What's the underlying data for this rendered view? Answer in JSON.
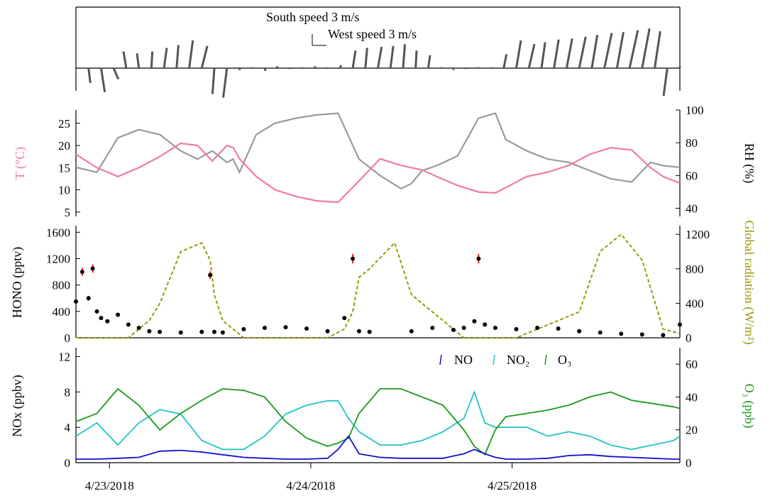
{
  "colors": {
    "wind": "#555555",
    "temperature": "#f07aa8",
    "rh": "#9a9a9a",
    "hono": "#000000",
    "hono_err": "#ff2020",
    "radiation": "#9a9a0a",
    "no": "#1010d0",
    "no2": "#20c4c4",
    "o3": "#1a9a1a"
  },
  "chart_data": [
    {
      "type": "line",
      "panel": "wind",
      "annotations": {
        "south": "South speed 3 m/s",
        "west": "West speed 3 m/s"
      },
      "x": [
        0,
        0.06,
        0.12,
        0.18,
        0.24,
        0.3,
        0.36,
        0.42,
        0.48,
        0.54,
        0.6,
        0.66,
        0.72,
        0.78,
        0.84,
        0.9,
        0.96,
        1.02,
        1.08,
        1.14,
        1.2,
        1.26,
        1.32,
        1.38,
        1.44,
        1.5,
        1.56,
        1.62,
        1.68,
        1.74,
        1.8,
        1.86,
        1.92,
        1.98,
        2.04,
        2.1,
        2.16,
        2.22,
        2.28,
        2.34,
        2.4,
        2.46,
        2.52,
        2.58,
        2.64,
        2.7,
        2.76,
        2.82,
        2.88
      ],
      "south_component": [
        0.1,
        -1.6,
        -2.6,
        -1.2,
        1.8,
        1.6,
        1.8,
        2.2,
        2.5,
        3.0,
        2.4,
        -2.8,
        -3.2,
        -0.2,
        0.1,
        -0.3,
        0.2,
        -0.1,
        0.1,
        0.2,
        0.1,
        0.3,
        1.9,
        2.2,
        2.3,
        2.4,
        2.6,
        1.9,
        1.4,
        0.1,
        -0.2,
        -0.1,
        0.1,
        0.1,
        1.5,
        3.0,
        2.6,
        2.8,
        3.1,
        3.2,
        3.4,
        3.6,
        3.8,
        3.9,
        4.1,
        4.3,
        4.0,
        -3.0,
        0.2
      ],
      "west_component": [
        0.0,
        0.2,
        0.4,
        0.5,
        -0.3,
        -0.2,
        0.1,
        0.3,
        0.2,
        0.4,
        0.6,
        -0.2,
        -0.4,
        0.0,
        0.0,
        0.1,
        0.0,
        0.0,
        0.0,
        0.0,
        0.0,
        0.1,
        0.3,
        0.2,
        0.4,
        0.3,
        0.2,
        0.1,
        0.2,
        0.0,
        0.0,
        0.0,
        0.0,
        0.0,
        0.3,
        0.5,
        0.6,
        0.4,
        0.5,
        0.6,
        0.7,
        0.6,
        0.8,
        0.7,
        0.9,
        0.8,
        0.6,
        -0.4,
        0.0
      ]
    },
    {
      "type": "line",
      "panel": "temperature_rh",
      "ylabel_left": "T (°C)",
      "ylabel_right": "RH (%)",
      "ylim_left": [
        4,
        28
      ],
      "yticks_left": [
        5,
        10,
        15,
        20,
        25
      ],
      "ylim_right": [
        35,
        100
      ],
      "yticks_right": [
        40,
        60,
        80,
        100
      ],
      "x": [
        0.0,
        0.1,
        0.2,
        0.3,
        0.4,
        0.5,
        0.58,
        0.65,
        0.72,
        0.75,
        0.78,
        0.86,
        0.95,
        1.05,
        1.15,
        1.25,
        1.35,
        1.4,
        1.45,
        1.55,
        1.6,
        1.65,
        1.72,
        1.82,
        1.92,
        2.0,
        2.05,
        2.15,
        2.25,
        2.35,
        2.45,
        2.55,
        2.65,
        2.74,
        2.8,
        2.88
      ],
      "series": [
        {
          "name": "T",
          "values": [
            18,
            15,
            13,
            15,
            17.5,
            20.5,
            20,
            16.5,
            20,
            19.5,
            17,
            13,
            10,
            8.5,
            7.5,
            7.2,
            12,
            14.5,
            17,
            15.5,
            15,
            14.5,
            13,
            11,
            9.5,
            9.3,
            10.5,
            13,
            14,
            15.5,
            18,
            19.5,
            19,
            15,
            13,
            11.5
          ]
        },
        {
          "name": "RH",
          "values": [
            65,
            62,
            83,
            88,
            85,
            75,
            70,
            75,
            68,
            70,
            62,
            85,
            92,
            95,
            97,
            98,
            70,
            65,
            60,
            52,
            55,
            63,
            66,
            72,
            95,
            98,
            82,
            75,
            70,
            68,
            63,
            58,
            56,
            68,
            66,
            65
          ]
        }
      ]
    },
    {
      "type": "line",
      "panel": "hono_radiation",
      "ylabel_left": "HONO (pptv)",
      "ylabel_right": "Global radiation (W/m²)",
      "ylim_left": [
        0,
        1700
      ],
      "yticks_left": [
        0,
        400,
        800,
        1200,
        1600
      ],
      "ylim_right": [
        0,
        1300
      ],
      "yticks_right": [
        0,
        400,
        800,
        1200
      ],
      "x": [
        0.0,
        0.03,
        0.06,
        0.08,
        0.1,
        0.12,
        0.15,
        0.2,
        0.25,
        0.3,
        0.35,
        0.4,
        0.5,
        0.6,
        0.64,
        0.66,
        0.7,
        0.8,
        0.9,
        1.0,
        1.1,
        1.2,
        1.28,
        1.32,
        1.35,
        1.4,
        1.52,
        1.6,
        1.7,
        1.8,
        1.85,
        1.9,
        1.92,
        1.95,
        2.0,
        2.1,
        2.2,
        2.3,
        2.4,
        2.5,
        2.6,
        2.7,
        2.8,
        2.88
      ],
      "series": [
        {
          "name": "HONO",
          "values": [
            550,
            1000,
            600,
            1050,
            400,
            300,
            250,
            350,
            200,
            150,
            100,
            90,
            80,
            90,
            950,
            90,
            80,
            130,
            150,
            160,
            140,
            100,
            300,
            1200,
            100,
            90,
            null,
            100,
            150,
            120,
            150,
            250,
            1200,
            200,
            150,
            130,
            150,
            140,
            100,
            80,
            60,
            50,
            40,
            200
          ]
        },
        {
          "name": "Global radiation",
          "values": [
            0,
            0,
            0,
            0,
            0,
            0,
            0,
            0,
            0,
            100,
            200,
            400,
            1000,
            1100,
            900,
            500,
            200,
            0,
            0,
            0,
            0,
            0,
            100,
            300,
            700,
            800,
            1100,
            500,
            300,
            100,
            0,
            0,
            0,
            0,
            0,
            0,
            100,
            200,
            300,
            1000,
            1200,
            900,
            100,
            50
          ]
        }
      ]
    },
    {
      "type": "line",
      "panel": "nox_o3",
      "ylabel_left": "NOx (ppbv)",
      "ylabel_right": "O₃ (ppb)",
      "ylim_left": [
        0,
        13
      ],
      "yticks_left": [
        0,
        4,
        8,
        12
      ],
      "ylim_right": [
        0,
        70
      ],
      "yticks_right": [
        0,
        20,
        40,
        60
      ],
      "legend": [
        "NO",
        "NO₂",
        "O₃"
      ],
      "x": [
        0.0,
        0.1,
        0.2,
        0.3,
        0.4,
        0.5,
        0.6,
        0.7,
        0.8,
        0.9,
        1.0,
        1.1,
        1.2,
        1.25,
        1.3,
        1.35,
        1.45,
        1.55,
        1.65,
        1.75,
        1.85,
        1.9,
        1.95,
        2.0,
        2.05,
        2.15,
        2.25,
        2.35,
        2.45,
        2.55,
        2.65,
        2.75,
        2.85,
        2.88
      ],
      "series": [
        {
          "name": "NO",
          "values": [
            0.4,
            0.4,
            0.5,
            0.6,
            1.3,
            1.4,
            1.2,
            0.9,
            0.6,
            0.5,
            0.4,
            0.4,
            0.5,
            1.5,
            3.0,
            1.0,
            0.6,
            0.5,
            0.5,
            0.5,
            1.0,
            1.5,
            1.0,
            0.6,
            0.4,
            0.4,
            0.5,
            0.8,
            0.9,
            0.7,
            0.6,
            0.5,
            0.4,
            0.4
          ]
        },
        {
          "name": "NO₂",
          "values": [
            3.0,
            4.5,
            2.0,
            4.5,
            6.0,
            5.5,
            2.5,
            1.5,
            1.5,
            3.0,
            5.5,
            6.5,
            7.0,
            7.0,
            5.0,
            3.5,
            2.0,
            2.0,
            2.5,
            3.5,
            5.0,
            8.0,
            4.5,
            4.0,
            4.0,
            4.0,
            3.0,
            3.5,
            3.0,
            2.0,
            1.5,
            2.0,
            2.5,
            3.0
          ]
        },
        {
          "name": "O₃",
          "values": [
            25,
            30,
            45,
            35,
            20,
            30,
            38,
            45,
            44,
            40,
            25,
            15,
            10,
            12,
            15,
            30,
            45,
            45,
            40,
            35,
            20,
            10,
            5,
            20,
            28,
            30,
            32,
            35,
            40,
            43,
            38,
            36,
            34,
            33
          ]
        }
      ],
      "xtick_labels": [
        "4/23/2018",
        "4/24/2018",
        "4/25/2018"
      ]
    }
  ]
}
